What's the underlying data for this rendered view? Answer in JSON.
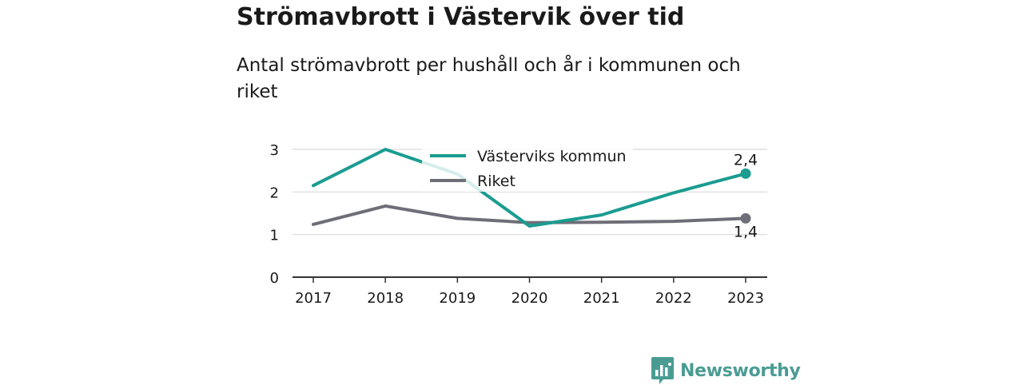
{
  "chart_data": {
    "type": "line",
    "title": "Strömavbrott i Västervik över tid",
    "subtitle": "Antal strömavbrott per hushåll och år i kommunen och riket",
    "x": [
      "2017",
      "2018",
      "2019",
      "2020",
      "2021",
      "2022",
      "2023"
    ],
    "yticks": [
      "0",
      "1",
      "2",
      "3"
    ],
    "ylim": [
      0,
      3
    ],
    "grid": true,
    "legend_position": "top-center",
    "series": [
      {
        "name": "Västerviks kommun",
        "color": "#1a9c90",
        "values": [
          2.15,
          3.0,
          2.42,
          1.2,
          1.46,
          1.98,
          2.43
        ],
        "end_label": "2,4"
      },
      {
        "name": "Riket",
        "color": "#6e6e78",
        "values": [
          1.24,
          1.67,
          1.38,
          1.28,
          1.29,
          1.31,
          1.38
        ],
        "end_label": "1,4"
      }
    ]
  },
  "brand": {
    "name": "Newsworthy",
    "icon": "newsworthy-logo-icon",
    "color": "#4a9c93"
  }
}
